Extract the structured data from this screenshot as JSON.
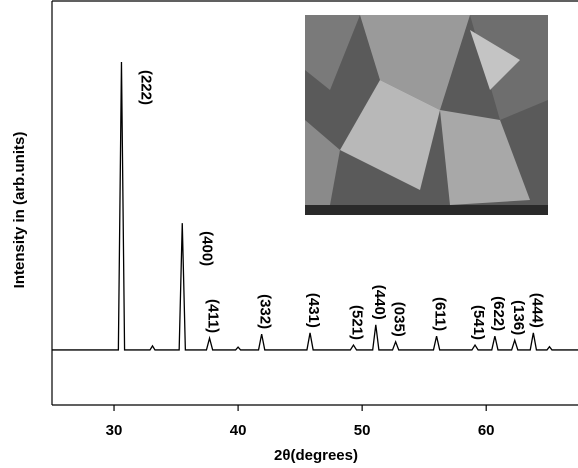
{
  "chart_data": {
    "type": "line",
    "xlabel": "2θ(degrees)",
    "ylabel": "Intensity in (arb.units)",
    "color": "#000000",
    "x": [
      25,
      30.35,
      30.6,
      30.85,
      32.9,
      33.1,
      33.3,
      35.25,
      35.5,
      35.75,
      37.45,
      37.7,
      37.95,
      39.8,
      40.0,
      40.2,
      41.65,
      41.9,
      42.15,
      45.55,
      45.8,
      46.05,
      49.05,
      49.3,
      49.55,
      50.85,
      51.1,
      51.35,
      52.45,
      52.7,
      52.95,
      55.75,
      56.0,
      56.25,
      58.85,
      59.1,
      59.35,
      60.45,
      60.7,
      60.95,
      62.05,
      62.3,
      62.55,
      63.55,
      63.8,
      64.05,
      64.9,
      65.1,
      65.3,
      67.4
    ],
    "values": [
      136,
      136,
      847,
      136,
      136,
      146,
      136,
      136,
      449,
      136,
      136,
      165,
      136,
      136,
      143,
      136,
      136,
      175,
      136,
      136,
      178,
      136,
      136,
      148,
      136,
      136,
      198,
      136,
      136,
      156,
      136,
      136,
      170,
      136,
      136,
      148,
      136,
      136,
      170,
      136,
      136,
      160,
      136,
      136,
      178,
      136,
      136,
      144,
      136,
      136
    ],
    "xlim": [
      25,
      67.4
    ],
    "ylim": [
      0,
      1000
    ],
    "xticks": [
      30,
      40,
      50,
      60
    ],
    "annotations": [
      {
        "text": "(222)",
        "x": 30.6
      },
      {
        "text": "(400)",
        "x": 35.5
      },
      {
        "text": "(411)",
        "x": 37.7
      },
      {
        "text": "(332)",
        "x": 41.9
      },
      {
        "text": "(431)",
        "x": 45.8
      },
      {
        "text": "(521)",
        "x": 49.3
      },
      {
        "text": "(440)",
        "x": 51.1
      },
      {
        "text": "(035)",
        "x": 52.7
      },
      {
        "text": "(611)",
        "x": 56.0
      },
      {
        "text": "(541)",
        "x": 59.1
      },
      {
        "text": "(622)",
        "x": 60.7
      },
      {
        "text": "(136)",
        "x": 62.3
      },
      {
        "text": "(444)",
        "x": 63.8
      }
    ]
  }
}
